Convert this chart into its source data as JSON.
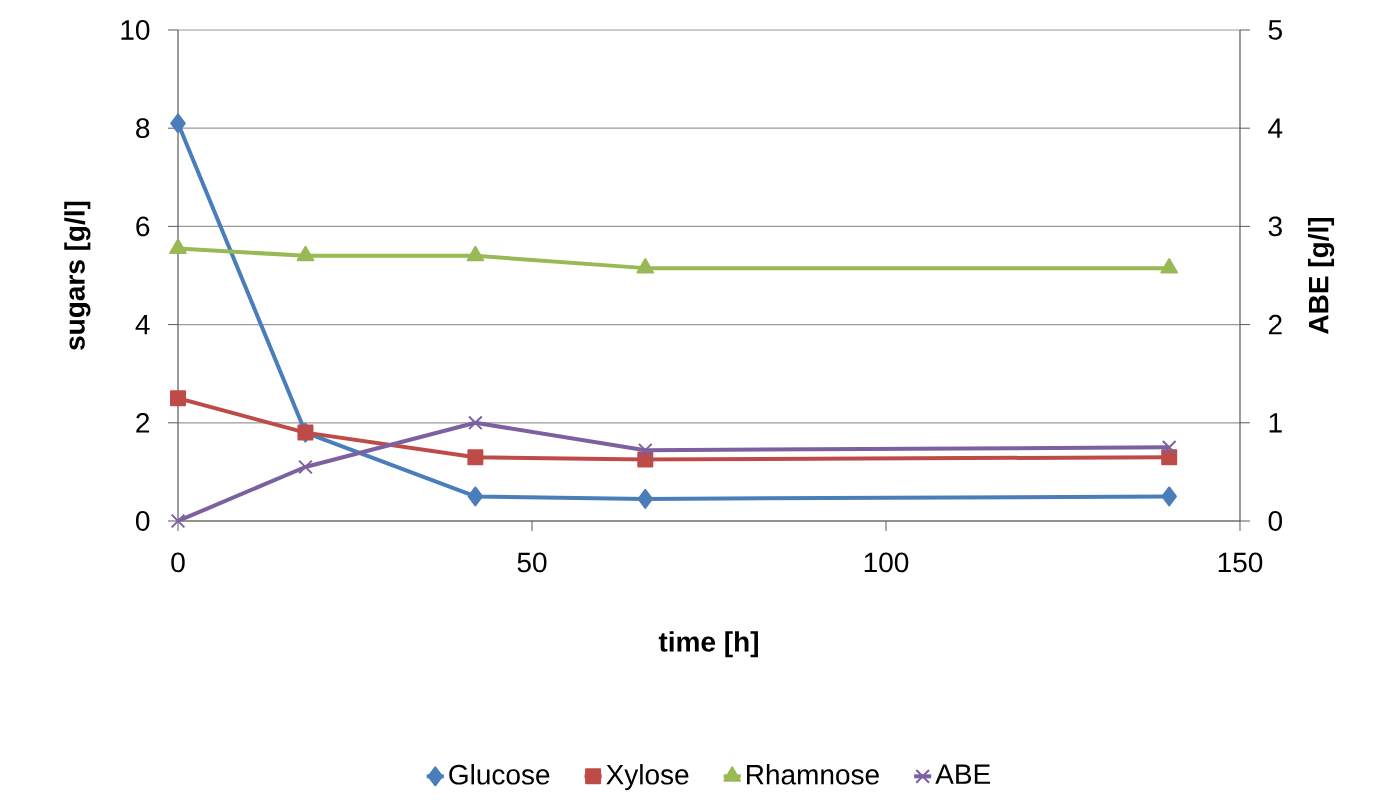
{
  "chart_data": {
    "type": "line",
    "xlabel": "time [h]",
    "ylabel": "sugars [g/l]",
    "y2label": "ABE [g/l]",
    "xlim": [
      0,
      150
    ],
    "xticks": [
      0,
      50,
      100,
      150
    ],
    "ylim": [
      0,
      10
    ],
    "yticks": [
      0,
      2,
      4,
      6,
      8,
      10
    ],
    "y2lim": [
      0,
      5
    ],
    "y2ticks": [
      0,
      1,
      2,
      3,
      4,
      5
    ],
    "grid": "y",
    "legend": "bottom",
    "line_style": "solid",
    "series": [
      {
        "name": "Glucose",
        "color": "#4a7ebb",
        "marker": "diamond",
        "x": [
          0,
          18,
          42,
          66,
          140
        ],
        "values": [
          8.1,
          1.8,
          0.5,
          0.45,
          0.5
        ]
      },
      {
        "name": "Xylose",
        "color": "#be4b48",
        "marker": "square",
        "x": [
          0,
          18,
          42,
          66,
          140
        ],
        "values": [
          2.5,
          1.8,
          1.3,
          1.25,
          1.3
        ]
      },
      {
        "name": "Rhamnose",
        "color": "#98b954",
        "marker": "triangle",
        "x": [
          0,
          18,
          42,
          66,
          140
        ],
        "values": [
          5.55,
          5.4,
          5.4,
          5.15,
          5.15
        ]
      },
      {
        "name": "ABE",
        "color": "#7d60a0",
        "marker": "cross",
        "axis": "y2",
        "x": [
          0,
          18,
          42,
          66,
          140
        ],
        "values": [
          0,
          0.55,
          1.0,
          0.72,
          0.75
        ]
      }
    ]
  }
}
